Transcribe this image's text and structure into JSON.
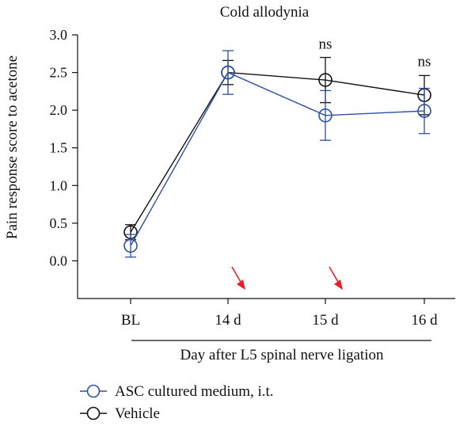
{
  "chart_data": {
    "type": "line",
    "title": "Cold allodynia",
    "ylabel": "Pain response score to acetone",
    "xlabel": "Day after L5 spinal nerve ligation",
    "categories": [
      "BL",
      "14 d",
      "15 d",
      "16 d"
    ],
    "ylim": [
      -0.5,
      3.0
    ],
    "yticks": [
      0.0,
      0.5,
      1.0,
      1.5,
      2.0,
      2.5,
      3.0
    ],
    "ytick_labels": [
      "0.0",
      "0.5",
      "1.0",
      "1.5",
      "2.0",
      "2.5",
      "3.0"
    ],
    "grid": false,
    "legend_position": "bottom-left",
    "series": [
      {
        "name": "ASC cultured medium, i.t.",
        "color": "#2f4fa3",
        "values": [
          0.2,
          2.5,
          1.93,
          1.99
        ],
        "errors": [
          0.15,
          0.29,
          0.33,
          0.3
        ]
      },
      {
        "name": "Vehicle",
        "color": "#111111",
        "values": [
          0.38,
          2.5,
          2.4,
          2.2
        ],
        "errors": [
          0.1,
          0.16,
          0.3,
          0.26
        ]
      }
    ],
    "annotations": [
      {
        "category": "15 d",
        "text": "ns",
        "y": 2.88
      },
      {
        "category": "16 d",
        "text": "ns",
        "y": 2.65
      }
    ],
    "arrows": [
      {
        "category": "14 d",
        "color": "#e8202a"
      },
      {
        "category": "15 d",
        "color": "#e8202a"
      }
    ]
  }
}
